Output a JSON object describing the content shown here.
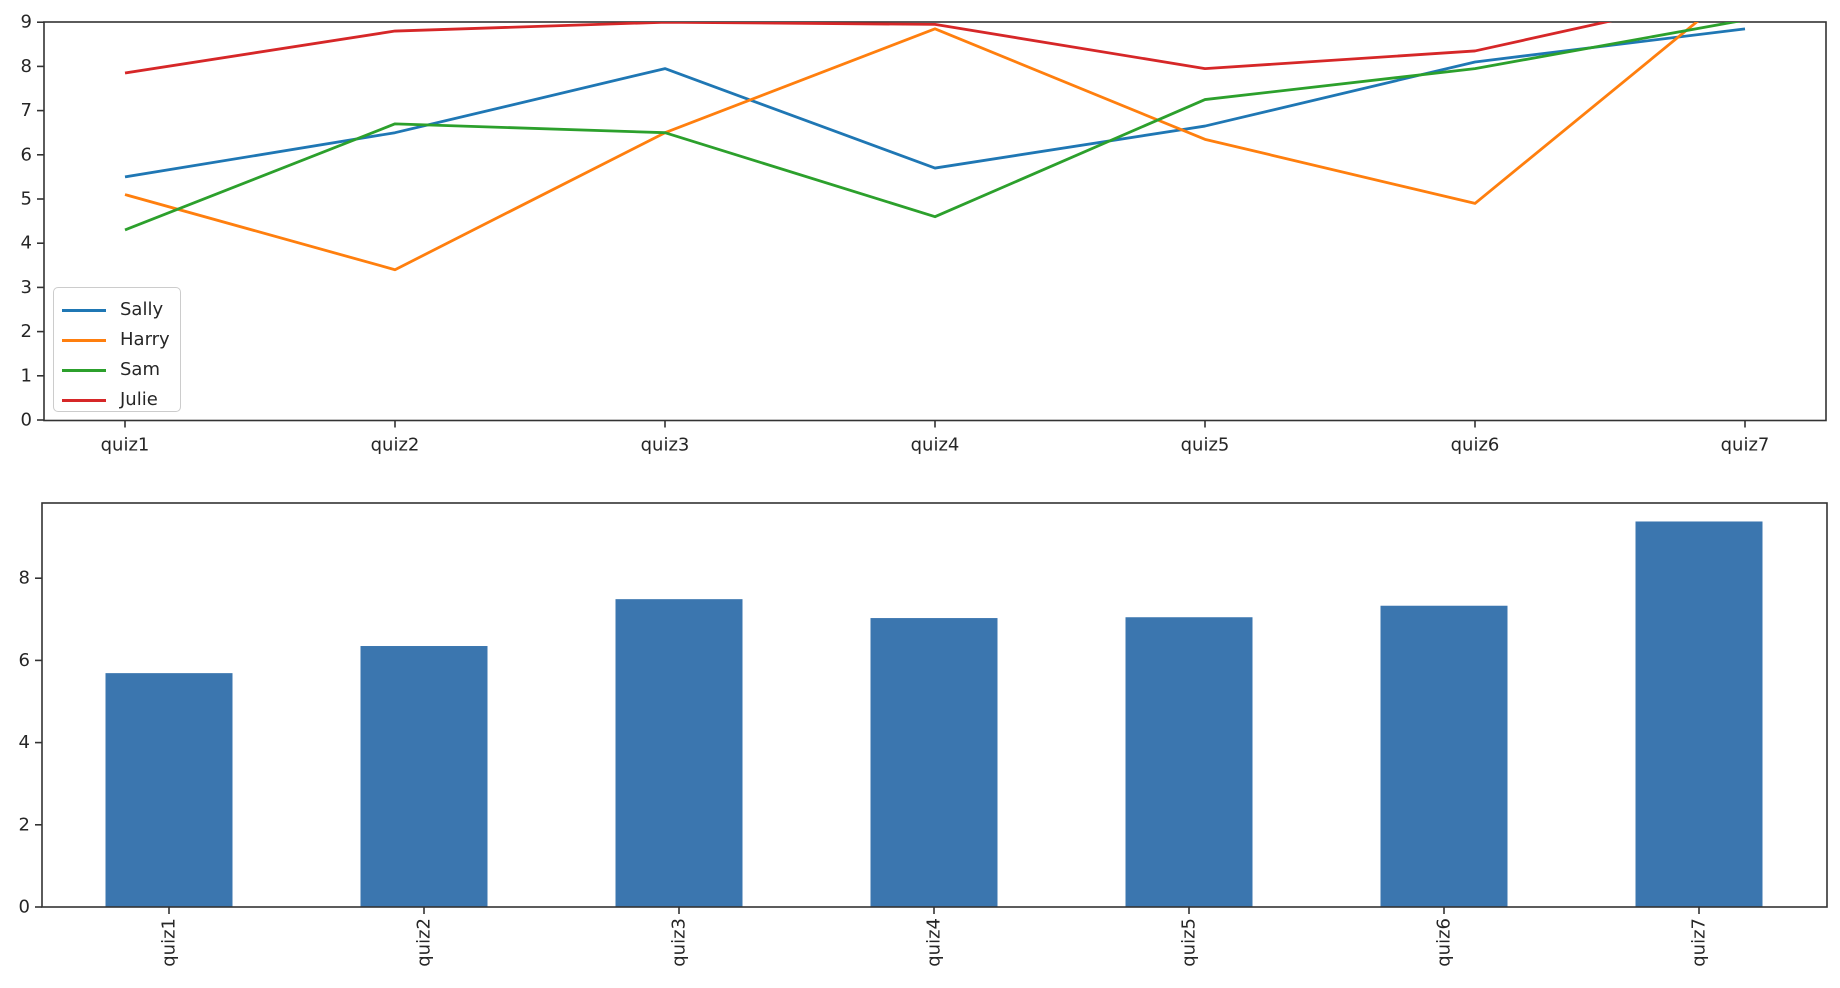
{
  "figure": {
    "background": "#ffffff",
    "spine_color": "#333333",
    "text_color": "#262626"
  },
  "chart_data": [
    {
      "type": "line",
      "title": "",
      "xlabel": "",
      "ylabel": "",
      "categories": [
        "quiz1",
        "quiz2",
        "quiz3",
        "quiz4",
        "quiz5",
        "quiz6",
        "quiz7"
      ],
      "series": [
        {
          "name": "Sally",
          "color": "#1f77b4",
          "values": [
            5.5,
            6.5,
            7.95,
            5.7,
            6.65,
            8.1,
            8.85
          ]
        },
        {
          "name": "Harry",
          "color": "#ff7f0e",
          "values": [
            5.1,
            3.4,
            6.5,
            8.85,
            6.35,
            4.9,
            9.9
          ]
        },
        {
          "name": "Sam",
          "color": "#2ca02c",
          "values": [
            4.3,
            6.7,
            6.5,
            4.6,
            7.25,
            7.95,
            9.05
          ]
        },
        {
          "name": "Julie",
          "color": "#d62728",
          "values": [
            7.85,
            8.8,
            9.0,
            8.95,
            7.95,
            8.35,
            9.7
          ]
        }
      ],
      "ylim": [
        0,
        9
      ],
      "yticks": [
        0,
        1,
        2,
        3,
        4,
        5,
        6,
        7,
        8,
        9
      ],
      "grid": false,
      "legend_position": "lower left",
      "note": "series values above 9 are clipped at the top axes edge"
    },
    {
      "type": "bar",
      "title": "",
      "xlabel": "",
      "ylabel": "",
      "categories": [
        "quiz1",
        "quiz2",
        "quiz3",
        "quiz4",
        "quiz5",
        "quiz6",
        "quiz7"
      ],
      "values": [
        5.69,
        6.35,
        7.49,
        7.03,
        7.05,
        7.33,
        9.38
      ],
      "bar_color": "#3b76af",
      "ylim": [
        0,
        9.83
      ],
      "yticks": [
        0,
        2,
        4,
        6,
        8
      ],
      "grid": false,
      "xtick_rotation": 90
    }
  ]
}
